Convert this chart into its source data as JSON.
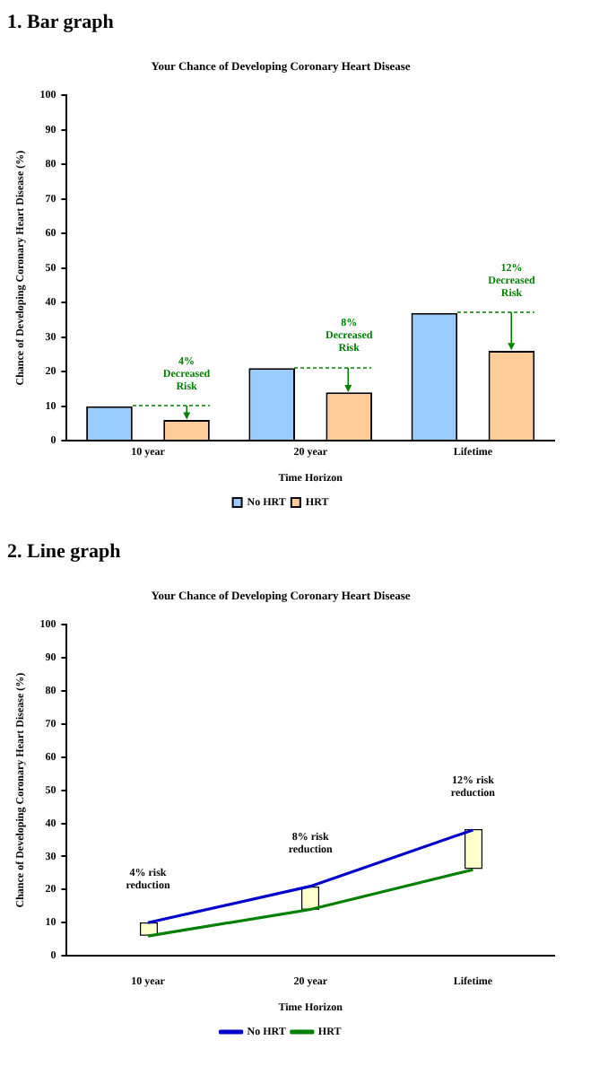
{
  "chart_data": [
    {
      "type": "bar",
      "title": "1. Bar graph",
      "subtitle": "Your Chance of Developing Coronary Heart Disease",
      "xlabel": "Time Horizon",
      "ylabel": "Chance of Developing Coronary Heart Disease (%)",
      "categories": [
        "10 year",
        "20 year",
        "Lifetime"
      ],
      "series": [
        {
          "name": "No HRT",
          "color": "#99ccff",
          "values": [
            10,
            21,
            37
          ]
        },
        {
          "name": "HRT",
          "color": "#ffcc99",
          "values": [
            6,
            14,
            26
          ]
        }
      ],
      "ylim": [
        0,
        100
      ],
      "yticks": [
        0,
        10,
        20,
        30,
        40,
        50,
        60,
        70,
        80,
        90,
        100
      ],
      "grid": false,
      "legend": "bottom",
      "annotations": [
        "4% Decreased Risk",
        "8% Decreased Risk",
        "12% Decreased Risk"
      ]
    },
    {
      "type": "line",
      "title": "2. Line graph",
      "subtitle": "Your Chance of Developing Coronary Heart Disease",
      "xlabel": "Time Horizon",
      "ylabel": "Chance of Developing Coronary Heart Disease (%)",
      "categories": [
        "10 year",
        "20 year",
        "Lifetime"
      ],
      "series": [
        {
          "name": "No HRT",
          "color": "#0000cc",
          "values": [
            10,
            21,
            38
          ]
        },
        {
          "name": "HRT",
          "color": "#008000",
          "values": [
            6,
            14,
            26
          ]
        }
      ],
      "ylim": [
        0,
        100
      ],
      "yticks": [
        0,
        10,
        20,
        30,
        40,
        50,
        60,
        70,
        80,
        90,
        100
      ],
      "grid": false,
      "legend": "bottom",
      "annotations": [
        "4% risk reduction",
        "8% risk reduction",
        "12% risk reduction"
      ]
    }
  ]
}
